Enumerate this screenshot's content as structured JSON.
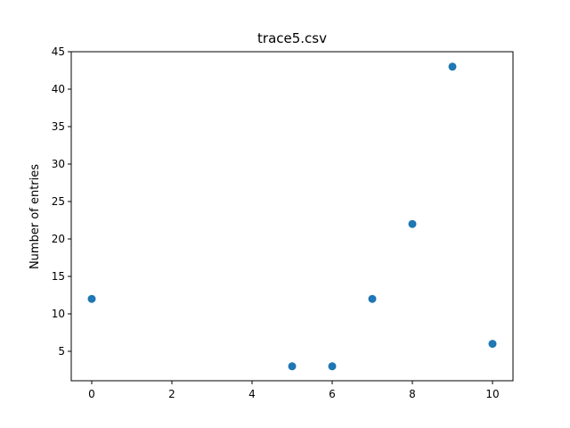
{
  "chart_data": {
    "type": "scatter",
    "title": "trace5.csv",
    "xlabel": "",
    "ylabel": "Number of entries",
    "x": [
      0,
      5,
      6,
      7,
      8,
      9,
      10
    ],
    "y": [
      12,
      3,
      3,
      12,
      22,
      43,
      6
    ],
    "xlim": [
      -0.5,
      10.5
    ],
    "ylim": [
      1,
      45
    ],
    "xticks": [
      0,
      2,
      4,
      6,
      8,
      10
    ],
    "yticks": [
      5,
      10,
      15,
      20,
      25,
      30,
      35,
      40,
      45
    ],
    "grid": false,
    "legend": "none",
    "marker_color": "#1f77b4"
  }
}
